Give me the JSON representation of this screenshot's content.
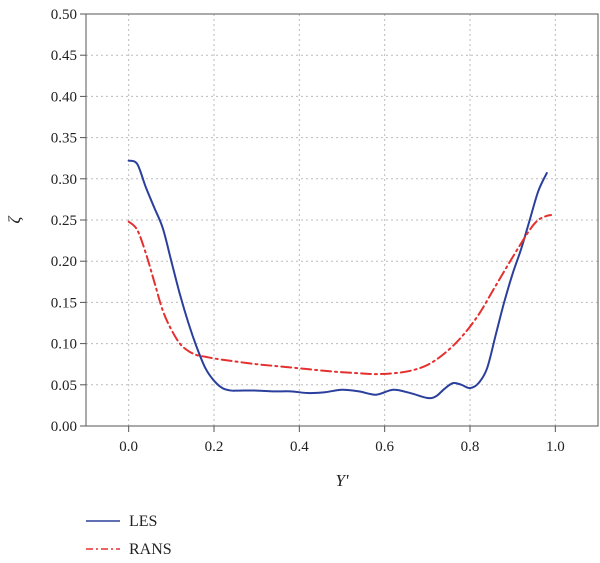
{
  "chart_data": {
    "type": "line",
    "xlabel": "Y'",
    "ylabel": "ζ",
    "xlim": [
      -0.1,
      1.1
    ],
    "ylim": [
      0.0,
      0.5
    ],
    "xticks": [
      0.0,
      0.2,
      0.4,
      0.6,
      0.8,
      1.0
    ],
    "xtick_labels": [
      "0.0",
      "0.2",
      "0.4",
      "0.6",
      "0.8",
      "1.0"
    ],
    "yticks": [
      0.0,
      0.05,
      0.1,
      0.15,
      0.2,
      0.25,
      0.3,
      0.35,
      0.4,
      0.45,
      0.5
    ],
    "ytick_labels": [
      "0.00",
      "0.05",
      "0.10",
      "0.15",
      "0.20",
      "0.25",
      "0.30",
      "0.35",
      "0.40",
      "0.45",
      "0.50"
    ],
    "grid": true,
    "legend_position": "bottom-left, below plot",
    "series": [
      {
        "name": "LES",
        "color": "#2b3f9c",
        "style": "solid",
        "x": [
          0.0,
          0.02,
          0.04,
          0.06,
          0.08,
          0.1,
          0.12,
          0.14,
          0.16,
          0.18,
          0.2,
          0.22,
          0.24,
          0.26,
          0.3,
          0.34,
          0.38,
          0.42,
          0.46,
          0.5,
          0.54,
          0.58,
          0.62,
          0.66,
          0.7,
          0.72,
          0.74,
          0.76,
          0.78,
          0.8,
          0.82,
          0.84,
          0.86,
          0.88,
          0.9,
          0.92,
          0.94,
          0.96,
          0.98
        ],
        "y": [
          0.322,
          0.318,
          0.29,
          0.265,
          0.24,
          0.2,
          0.16,
          0.125,
          0.095,
          0.07,
          0.055,
          0.046,
          0.043,
          0.043,
          0.043,
          0.042,
          0.042,
          0.04,
          0.041,
          0.044,
          0.042,
          0.038,
          0.044,
          0.04,
          0.034,
          0.036,
          0.045,
          0.052,
          0.05,
          0.046,
          0.052,
          0.07,
          0.11,
          0.15,
          0.185,
          0.215,
          0.25,
          0.285,
          0.307
        ]
      },
      {
        "name": "RANS",
        "color": "#e53030",
        "style": "dashdot",
        "x": [
          0.0,
          0.02,
          0.04,
          0.06,
          0.08,
          0.1,
          0.12,
          0.14,
          0.16,
          0.18,
          0.2,
          0.24,
          0.3,
          0.36,
          0.42,
          0.48,
          0.54,
          0.58,
          0.62,
          0.66,
          0.7,
          0.74,
          0.78,
          0.82,
          0.86,
          0.9,
          0.94,
          0.96,
          0.98,
          0.99
        ],
        "y": [
          0.248,
          0.238,
          0.21,
          0.175,
          0.14,
          0.117,
          0.1,
          0.091,
          0.086,
          0.084,
          0.082,
          0.079,
          0.075,
          0.072,
          0.069,
          0.066,
          0.064,
          0.063,
          0.064,
          0.067,
          0.074,
          0.088,
          0.108,
          0.135,
          0.17,
          0.205,
          0.238,
          0.25,
          0.255,
          0.256
        ]
      }
    ]
  }
}
